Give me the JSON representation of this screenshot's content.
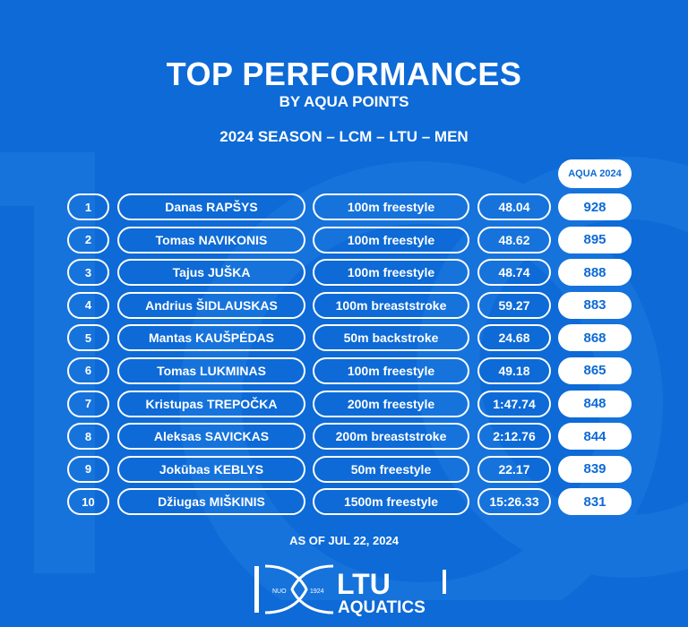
{
  "header": {
    "title": "TOP PERFORMANCES",
    "subtitle": "BY AQUA POINTS",
    "season": "2024 SEASON – LCM – LTU – MEN"
  },
  "table": {
    "points_header": "AQUA 2024",
    "rows": [
      {
        "rank": "1",
        "name": "Danas RAPŠYS",
        "event": "100m freestyle",
        "time": "48.04",
        "points": "928"
      },
      {
        "rank": "2",
        "name": "Tomas NAVIKONIS",
        "event": "100m freestyle",
        "time": "48.62",
        "points": "895"
      },
      {
        "rank": "3",
        "name": "Tajus JUŠKA",
        "event": "100m freestyle",
        "time": "48.74",
        "points": "888"
      },
      {
        "rank": "4",
        "name": "Andrius ŠIDLAUSKAS",
        "event": "100m breaststroke",
        "time": "59.27",
        "points": "883"
      },
      {
        "rank": "5",
        "name": "Mantas KAUŠPĖDAS",
        "event": "50m backstroke",
        "time": "24.68",
        "points": "868"
      },
      {
        "rank": "6",
        "name": "Tomas LUKMINAS",
        "event": "100m freestyle",
        "time": "49.18",
        "points": "865"
      },
      {
        "rank": "7",
        "name": "Kristupas TREPOČKA",
        "event": "200m freestyle",
        "time": "1:47.74",
        "points": "848"
      },
      {
        "rank": "8",
        "name": "Aleksas SAVICKAS",
        "event": "200m breaststroke",
        "time": "2:12.76",
        "points": "844"
      },
      {
        "rank": "9",
        "name": "Jokūbas KEBLYS",
        "event": "50m freestyle",
        "time": "22.17",
        "points": "839"
      },
      {
        "rank": "10",
        "name": "Džiugas MIŠKINIS",
        "event": "1500m freestyle",
        "time": "15:26.33",
        "points": "831"
      }
    ]
  },
  "footer": {
    "as_of": "AS OF JUL 22, 2024",
    "logo": {
      "nuo": "NUO",
      "year": "1924",
      "ltu": "LTU",
      "aquatics": "AQUATICS"
    }
  },
  "colors": {
    "background": "#0d6ad6",
    "watermark": "#1a76dd",
    "text": "#ffffff"
  }
}
